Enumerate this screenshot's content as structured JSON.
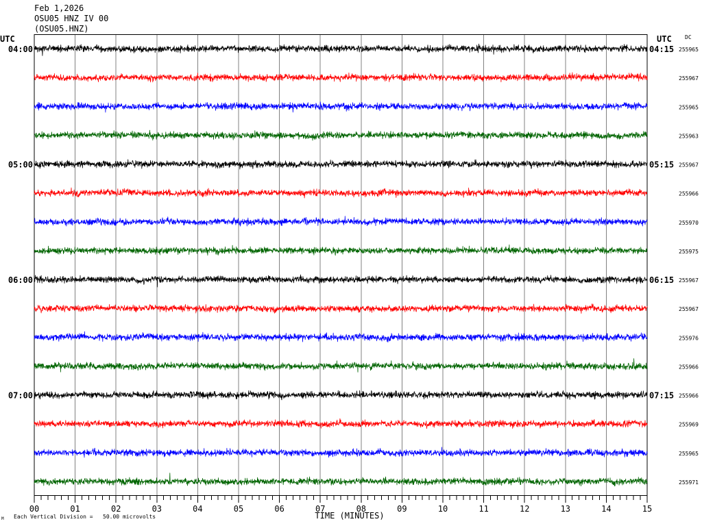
{
  "chart_data": {
    "type": "line",
    "title_lines": [
      "Feb 1,2026",
      "OSU05 HNZ IV 00",
      "(OSU05.HNZ)"
    ],
    "xlabel": "TIME (MINUTES)",
    "xlim": [
      0,
      15
    ],
    "x_ticks": [
      "00",
      "01",
      "02",
      "03",
      "04",
      "05",
      "06",
      "07",
      "08",
      "09",
      "10",
      "11",
      "12",
      "13",
      "14",
      "15"
    ],
    "left_axis_title": "UTC",
    "right_axis_title": "UTC",
    "dc_header": "DC",
    "scale_note": "Each Vertical Division =   50.00 microvolts",
    "corner_mark": "M",
    "grid": true,
    "rows": [
      {
        "color": "#000000",
        "dc": 255965,
        "left_label": "04:00",
        "right_label": "04:15"
      },
      {
        "color": "#ff0000",
        "dc": 255967
      },
      {
        "color": "#0000ff",
        "dc": 255965
      },
      {
        "color": "#006400",
        "dc": 255963
      },
      {
        "color": "#000000",
        "dc": 255967,
        "left_label": "05:00",
        "right_label": "05:15"
      },
      {
        "color": "#ff0000",
        "dc": 255966
      },
      {
        "color": "#0000ff",
        "dc": 255970
      },
      {
        "color": "#006400",
        "dc": 255975
      },
      {
        "color": "#000000",
        "dc": 255967,
        "left_label": "06:00",
        "right_label": "06:15"
      },
      {
        "color": "#ff0000",
        "dc": 255967
      },
      {
        "color": "#0000ff",
        "dc": 255976
      },
      {
        "color": "#006400",
        "dc": 255966
      },
      {
        "color": "#000000",
        "dc": 255966,
        "left_label": "07:00",
        "right_label": "07:15"
      },
      {
        "color": "#ff0000",
        "dc": 255969
      },
      {
        "color": "#0000ff",
        "dc": 255965
      },
      {
        "color": "#006400",
        "dc": 255971
      }
    ]
  }
}
